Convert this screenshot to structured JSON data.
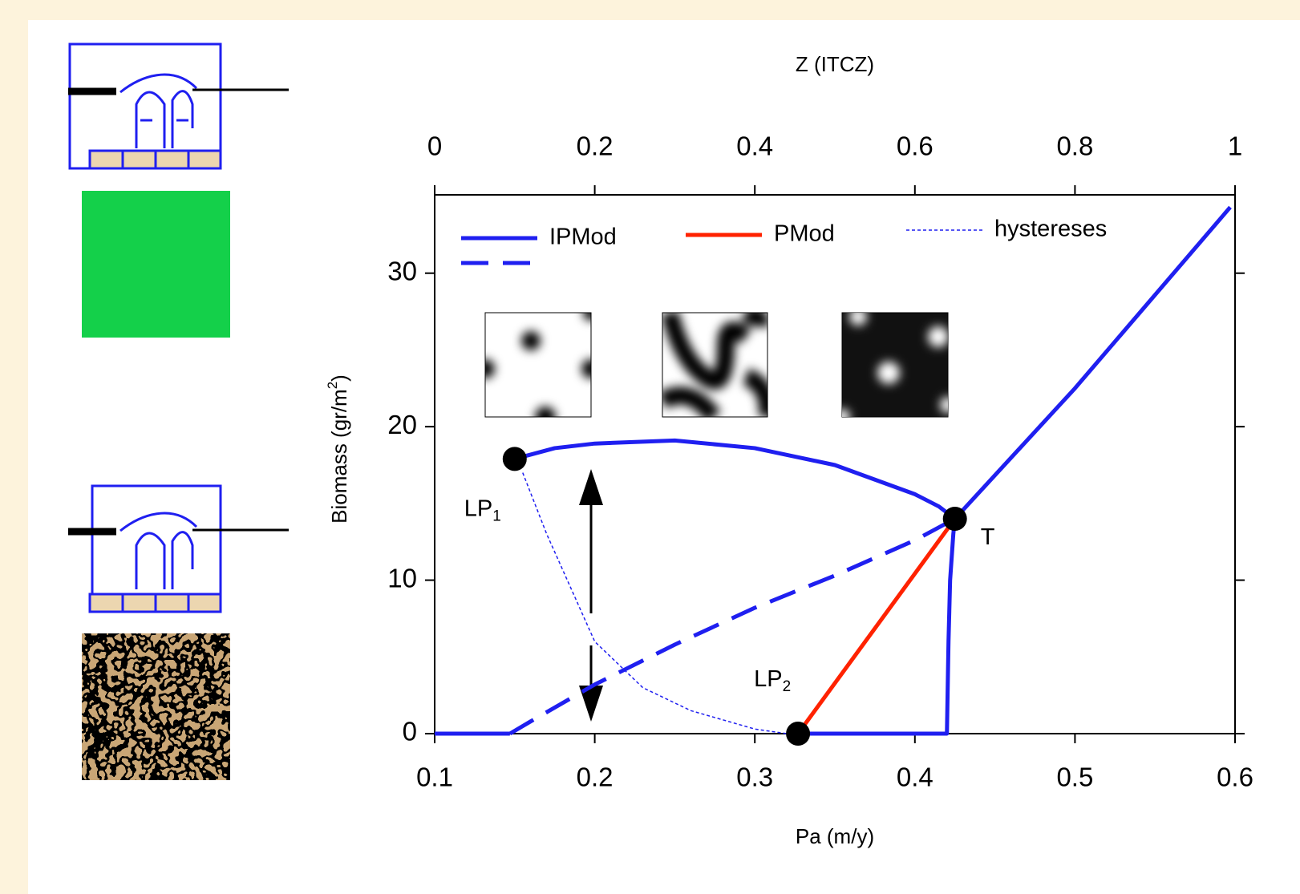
{
  "chart_data": {
    "type": "line",
    "xlabel": "Pa (m/y)",
    "ylabel": {
      "text": "Biomass (gr/m",
      "sup": "2",
      "end": ")"
    },
    "x2label": "Z (ITCZ)",
    "xlim": [
      0.1,
      0.6
    ],
    "xticks": [
      0.1,
      0.2,
      0.3,
      0.4,
      0.5,
      0.6
    ],
    "ylim": [
      0,
      35
    ],
    "yticks": [
      0,
      10,
      20,
      30
    ],
    "x2lim": [
      0,
      1
    ],
    "x2ticks": [
      0,
      0.2,
      0.4,
      0.6,
      0.8,
      1
    ],
    "series": [
      {
        "name": "IPMod",
        "color": "#1f1ff0",
        "style": "solid",
        "x": [
          0.1,
          0.147,
          null,
          0.15,
          0.175,
          0.2,
          0.25,
          0.3,
          0.35,
          0.4,
          0.415,
          0.425,
          0.5,
          0.597,
          null,
          0.327,
          0.42,
          0.421,
          0.422,
          0.424,
          0.425
        ],
        "values": [
          0,
          0,
          null,
          17.9,
          18.6,
          18.9,
          19.1,
          18.6,
          17.5,
          15.6,
          14.8,
          14,
          22.5,
          34.3,
          null,
          0,
          0,
          6,
          10,
          13,
          14
        ]
      },
      {
        "color": "#1f1ff0",
        "style": "dashed",
        "x": [
          0.147,
          0.16,
          0.2,
          0.25,
          0.3,
          0.35,
          0.4,
          0.425
        ],
        "values": [
          0,
          0.8,
          3.2,
          5.8,
          8.2,
          10.3,
          12.6,
          14
        ]
      },
      {
        "name": "PMod",
        "color": "#ff2200",
        "style": "solid",
        "x": [
          0.327,
          0.425
        ],
        "values": [
          0,
          14
        ]
      },
      {
        "name": "hystereses",
        "color": "#1f1ff0",
        "style": "dotted",
        "x": [
          0.155,
          0.17,
          0.2,
          0.23,
          0.26,
          0.3,
          0.32
        ],
        "values": [
          17,
          13,
          6,
          3,
          1.5,
          0.3,
          0
        ]
      }
    ],
    "points": {
      "color": "#000000",
      "x": [
        0.15,
        0.425,
        0.327
      ],
      "values": [
        17.9,
        14,
        0
      ],
      "labels": [
        {
          "text": "LP",
          "sub": "1"
        },
        {
          "text": "T"
        },
        {
          "text": "LP",
          "sub": "2"
        }
      ]
    }
  }
}
